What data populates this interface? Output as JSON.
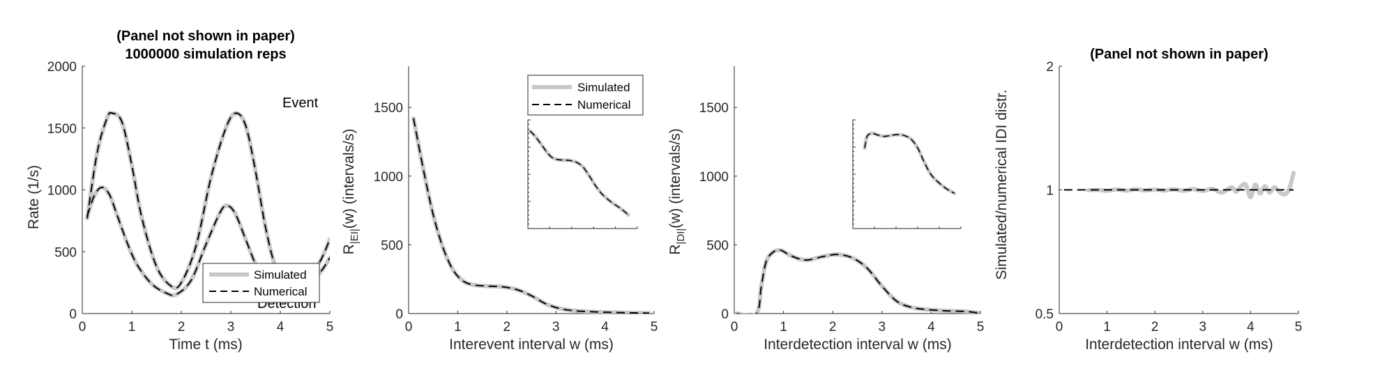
{
  "colors": {
    "simulated": "#c8c8c8",
    "numerical": "#000000",
    "axis": "#262626"
  },
  "chart_data": [
    {
      "type": "line",
      "title_lines": [
        "(Panel not shown in paper)",
        "1000000 simulation reps"
      ],
      "xlabel": "Time t (ms)",
      "ylabel": "Rate (1/s)",
      "xlim": [
        0,
        5
      ],
      "ylim": [
        0,
        2000
      ],
      "xticks": [
        0,
        1,
        2,
        3,
        4,
        5
      ],
      "yticks": [
        0,
        500,
        1000,
        1500,
        2000
      ],
      "annotations": [
        "Event",
        "Detection"
      ],
      "legend": {
        "placement": "bottom-right",
        "entries": [
          "Simulated",
          "Numerical"
        ]
      },
      "series": [
        {
          "name": "Simulated",
          "group": "event",
          "x": [
            0.1,
            0.3,
            0.5,
            0.6,
            0.8,
            1.0,
            1.2,
            1.5,
            1.8,
            2.0,
            2.3,
            2.6,
            2.9,
            3.1,
            3.3,
            3.5,
            3.7,
            3.9,
            4.1,
            4.3,
            4.5,
            4.8,
            5.0
          ],
          "y": [
            770,
            1300,
            1580,
            1620,
            1550,
            1200,
            780,
            380,
            220,
            250,
            550,
            1100,
            1500,
            1620,
            1520,
            1150,
            700,
            380,
            260,
            210,
            220,
            330,
            450
          ]
        },
        {
          "name": "Numerical",
          "group": "event",
          "x": [
            0.1,
            0.3,
            0.5,
            0.6,
            0.8,
            1.0,
            1.2,
            1.5,
            1.8,
            2.0,
            2.3,
            2.6,
            2.9,
            3.1,
            3.3,
            3.5,
            3.7,
            3.9,
            4.1,
            4.3,
            4.5,
            4.8,
            5.0
          ],
          "y": [
            770,
            1300,
            1580,
            1620,
            1550,
            1200,
            780,
            380,
            220,
            250,
            550,
            1100,
            1500,
            1620,
            1520,
            1150,
            700,
            380,
            260,
            210,
            220,
            330,
            450
          ]
        },
        {
          "name": "Simulated",
          "group": "detection",
          "x": [
            0.1,
            0.25,
            0.4,
            0.55,
            0.7,
            0.9,
            1.1,
            1.4,
            1.7,
            1.9,
            2.2,
            2.5,
            2.8,
            2.95,
            3.1,
            3.3,
            3.5,
            3.7,
            3.9,
            4.1,
            4.3,
            4.5,
            4.8,
            5.0
          ],
          "y": [
            790,
            960,
            1020,
            960,
            800,
            580,
            400,
            240,
            165,
            155,
            270,
            560,
            830,
            870,
            800,
            600,
            400,
            260,
            180,
            150,
            170,
            260,
            420,
            600
          ]
        },
        {
          "name": "Numerical",
          "group": "detection",
          "x": [
            0.1,
            0.25,
            0.4,
            0.55,
            0.7,
            0.9,
            1.1,
            1.4,
            1.7,
            1.9,
            2.2,
            2.5,
            2.8,
            2.95,
            3.1,
            3.3,
            3.5,
            3.7,
            3.9,
            4.1,
            4.3,
            4.5,
            4.8,
            5.0
          ],
          "y": [
            790,
            960,
            1020,
            960,
            800,
            580,
            400,
            240,
            165,
            155,
            270,
            560,
            830,
            870,
            800,
            600,
            400,
            260,
            180,
            150,
            170,
            260,
            420,
            600
          ]
        }
      ]
    },
    {
      "type": "line",
      "title_lines": [],
      "xlabel": "Interevent interval w (ms)",
      "ylabel": {
        "base": "R",
        "sub": "|EI|",
        "rest": "(w) (intervals/s)"
      },
      "xlim": [
        0,
        5
      ],
      "ylim": [
        0,
        1800
      ],
      "xticks": [
        0,
        1,
        2,
        3,
        4,
        5
      ],
      "yticks": [
        0,
        500,
        1000,
        1500
      ],
      "legend": {
        "placement": "top-right",
        "entries": [
          "Simulated",
          "Numerical"
        ]
      },
      "inset": "log-scale view of the same curves (tick labels not shown)",
      "series": [
        {
          "name": "Simulated",
          "x": [
            0.1,
            0.3,
            0.5,
            0.7,
            0.9,
            1.1,
            1.3,
            1.6,
            1.9,
            2.2,
            2.5,
            2.8,
            3.1,
            3.4,
            3.8,
            4.2,
            4.6,
            4.9
          ],
          "y": [
            1420,
            1050,
            720,
            480,
            320,
            240,
            210,
            200,
            195,
            175,
            130,
            70,
            35,
            20,
            12,
            8,
            5,
            3
          ]
        },
        {
          "name": "Numerical",
          "x": [
            0.1,
            0.3,
            0.5,
            0.7,
            0.9,
            1.1,
            1.3,
            1.6,
            1.9,
            2.2,
            2.5,
            2.8,
            3.1,
            3.4,
            3.8,
            4.2,
            4.6,
            4.9
          ],
          "y": [
            1420,
            1050,
            720,
            480,
            320,
            240,
            210,
            200,
            195,
            175,
            130,
            70,
            35,
            20,
            12,
            8,
            5,
            3
          ]
        }
      ]
    },
    {
      "type": "line",
      "title_lines": [],
      "xlabel": "Interdetection interval w (ms)",
      "ylabel": {
        "base": "R",
        "sub": "|DI|",
        "rest": "(w) (intervals/s)"
      },
      "xlim": [
        0,
        5
      ],
      "ylim": [
        0,
        1800
      ],
      "xticks": [
        0,
        1,
        2,
        3,
        4,
        5
      ],
      "yticks": [
        0,
        500,
        1000,
        1500
      ],
      "inset": "log-scale view of the same curves (tick labels not shown)",
      "series": [
        {
          "name": "Simulated",
          "x": [
            0.05,
            0.45,
            0.55,
            0.65,
            0.8,
            0.95,
            1.1,
            1.3,
            1.5,
            1.8,
            2.1,
            2.4,
            2.7,
            3.0,
            3.3,
            3.6,
            3.9,
            4.3,
            4.7,
            4.95
          ],
          "y": [
            0,
            0,
            200,
            380,
            450,
            460,
            430,
            400,
            390,
            415,
            430,
            405,
            330,
            200,
            90,
            45,
            30,
            20,
            15,
            5
          ]
        },
        {
          "name": "Numerical",
          "x": [
            0.05,
            0.45,
            0.55,
            0.65,
            0.8,
            0.95,
            1.1,
            1.3,
            1.5,
            1.8,
            2.1,
            2.4,
            2.7,
            3.0,
            3.3,
            3.6,
            3.9,
            4.3,
            4.7,
            4.95
          ],
          "y": [
            0,
            0,
            200,
            380,
            450,
            460,
            430,
            400,
            390,
            415,
            430,
            405,
            330,
            200,
            90,
            45,
            30,
            20,
            15,
            5
          ]
        }
      ]
    },
    {
      "type": "line",
      "title_lines": [
        "(Panel not shown in paper)"
      ],
      "xlabel": "Interdetection interval w (ms)",
      "ylabel": "Simulated/numerical IDI distr.",
      "xlim": [
        0,
        5
      ],
      "ylim": [
        0.5,
        2
      ],
      "yscale": "log",
      "xticks": [
        0,
        1,
        2,
        3,
        4,
        5
      ],
      "yticks": [
        0.5,
        1,
        2
      ],
      "series": [
        {
          "name": "Simulated",
          "x": [
            0.6,
            0.8,
            1.0,
            1.2,
            1.4,
            1.6,
            1.8,
            2.0,
            2.2,
            2.4,
            2.6,
            2.8,
            3.0,
            3.2,
            3.4,
            3.6,
            3.7,
            3.8,
            3.9,
            4.0,
            4.1,
            4.2,
            4.3,
            4.4,
            4.5,
            4.6,
            4.7,
            4.8,
            4.9
          ],
          "y": [
            0.998,
            1.0,
            0.995,
            1.003,
            0.996,
            1.004,
            0.997,
            1.002,
            0.996,
            1.003,
            0.995,
            1.004,
            0.994,
            1.006,
            0.985,
            1.015,
            0.99,
            1.02,
            1.03,
            0.96,
            1.03,
            0.98,
            1.02,
            0.985,
            1.015,
            0.99,
            0.975,
            1.0,
            1.1
          ]
        },
        {
          "name": "Numerical",
          "x": [
            0.1,
            4.9
          ],
          "y": [
            1.0,
            1.0
          ]
        }
      ]
    }
  ]
}
